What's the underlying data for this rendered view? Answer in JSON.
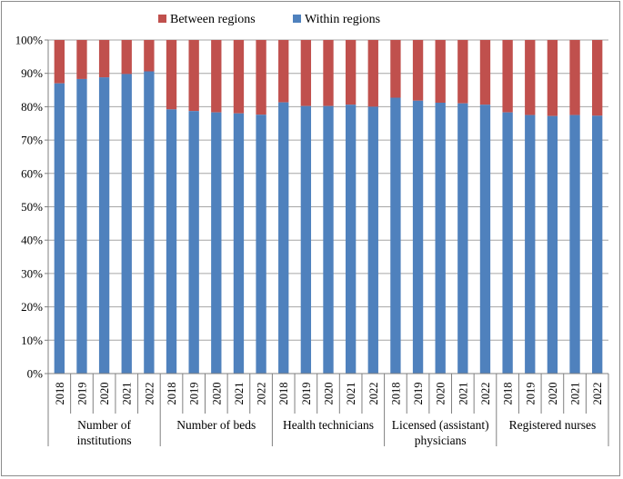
{
  "chart_data": {
    "type": "bar",
    "stacked": true,
    "percent": true,
    "title": "",
    "xlabel": "",
    "ylabel": "",
    "ylim": [
      0,
      100
    ],
    "yticks": [
      "0%",
      "10%",
      "20%",
      "30%",
      "40%",
      "50%",
      "60%",
      "70%",
      "80%",
      "90%",
      "100%"
    ],
    "legend_position": "top",
    "colors": {
      "between": "#c0504d",
      "within": "#4f81bd",
      "grid": "#a6a6a6",
      "axis": "#808080"
    },
    "years": [
      "2018",
      "2019",
      "2020",
      "2021",
      "2022"
    ],
    "groups": [
      {
        "label_lines": [
          "Number of",
          "institutions"
        ],
        "within": [
          87,
          88.3,
          88.8,
          89.8,
          90.6
        ]
      },
      {
        "label_lines": [
          "Number of beds"
        ],
        "within": [
          79.2,
          78.7,
          78.3,
          78,
          77.6
        ]
      },
      {
        "label_lines": [
          "Health technicians"
        ],
        "within": [
          81.3,
          80.2,
          80.2,
          80.6,
          80
        ]
      },
      {
        "label_lines": [
          "Licensed (assistant)",
          "physicians"
        ],
        "within": [
          82.7,
          81.8,
          81.2,
          81,
          80.6
        ]
      },
      {
        "label_lines": [
          "Registered nurses"
        ],
        "within": [
          78.3,
          77.5,
          77.2,
          77.5,
          77.3
        ]
      }
    ],
    "series": [
      {
        "name": "Between regions",
        "key": "between"
      },
      {
        "name": "Within regions",
        "key": "within"
      }
    ]
  }
}
